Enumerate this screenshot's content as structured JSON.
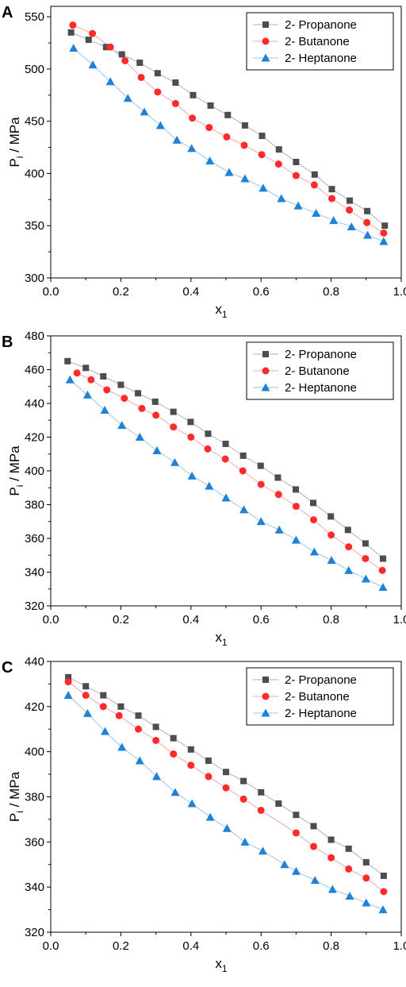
{
  "chart_data": [
    {
      "type": "scatter",
      "panel_label": "A",
      "xlabel": "x",
      "xlabel_sub": "1",
      "ylabel": "P",
      "ylabel_sub": "i",
      "ylabel_unit": " / MPa",
      "xlim": [
        0.0,
        1.0
      ],
      "ylim": [
        300,
        560
      ],
      "xticks": [
        0.0,
        0.2,
        0.4,
        0.6,
        0.8,
        1.0
      ],
      "xtick_labels": [
        "0.0",
        "0.2",
        "0.4",
        "0.6",
        "0.8",
        "1.0"
      ],
      "yticks": [
        300,
        350,
        400,
        450,
        500,
        550
      ],
      "ytick_labels": [
        "300",
        "350",
        "400",
        "450",
        "500",
        "550"
      ],
      "legend_position": "top-right",
      "series": [
        {
          "name": "2- Propanone",
          "color": "#4d4d4d",
          "line_color": "#b0b0b0",
          "marker": "square",
          "x": [
            0.058,
            0.108,
            0.158,
            0.203,
            0.254,
            0.305,
            0.356,
            0.406,
            0.456,
            0.505,
            0.554,
            0.603,
            0.651,
            0.7,
            0.753,
            0.802,
            0.853,
            0.903,
            0.953
          ],
          "y": [
            535,
            528,
            521,
            514,
            506,
            496,
            487,
            475,
            465,
            456,
            446,
            436,
            423,
            411,
            399,
            385,
            374,
            364,
            350
          ]
        },
        {
          "name": "2- Butanone",
          "color": "#ff2b2b",
          "line_color": "#f4a6a6",
          "marker": "circle",
          "x": [
            0.063,
            0.119,
            0.17,
            0.212,
            0.258,
            0.305,
            0.356,
            0.404,
            0.452,
            0.502,
            0.552,
            0.602,
            0.65,
            0.7,
            0.752,
            0.802,
            0.852,
            0.902,
            0.95
          ],
          "y": [
            542,
            534,
            521,
            508,
            492,
            478,
            467,
            453,
            444,
            435,
            427,
            418,
            409,
            398,
            389,
            376,
            365,
            353,
            343
          ]
        },
        {
          "name": "2- Heptanone",
          "color": "#1f82d8",
          "line_color": "#9cc6ea",
          "marker": "triangle",
          "x": [
            0.065,
            0.12,
            0.17,
            0.22,
            0.267,
            0.313,
            0.36,
            0.402,
            0.454,
            0.509,
            0.554,
            0.606,
            0.658,
            0.706,
            0.757,
            0.807,
            0.858,
            0.904,
            0.95
          ],
          "y": [
            520,
            504,
            488,
            472,
            459,
            446,
            432,
            424,
            412,
            401,
            395,
            386,
            376,
            369,
            362,
            355,
            349,
            341,
            335
          ]
        }
      ]
    },
    {
      "type": "scatter",
      "panel_label": "B",
      "xlabel": "x",
      "xlabel_sub": "1",
      "ylabel": "P",
      "ylabel_sub": "i",
      "ylabel_unit": " / MPa",
      "xlim": [
        0.0,
        1.0
      ],
      "ylim": [
        320,
        480
      ],
      "xticks": [
        0.0,
        0.2,
        0.4,
        0.6,
        0.8,
        1.0
      ],
      "xtick_labels": [
        "0.0",
        "0.2",
        "0.4",
        "0.6",
        "0.8",
        "1.0"
      ],
      "yticks": [
        320,
        340,
        360,
        380,
        400,
        420,
        440,
        460,
        480
      ],
      "ytick_labels": [
        "320",
        "340",
        "360",
        "380",
        "400",
        "420",
        "440",
        "460",
        "480"
      ],
      "legend_position": "top-right",
      "series": [
        {
          "name": "2- Propanone",
          "color": "#4d4d4d",
          "line_color": "#b0b0b0",
          "marker": "square",
          "x": [
            0.048,
            0.1,
            0.15,
            0.2,
            0.249,
            0.298,
            0.35,
            0.399,
            0.449,
            0.499,
            0.549,
            0.599,
            0.648,
            0.699,
            0.749,
            0.799,
            0.848,
            0.898,
            0.948
          ],
          "y": [
            465,
            461,
            456,
            451,
            446,
            441,
            435,
            429,
            422,
            416,
            409,
            403,
            396,
            389,
            381,
            373,
            365,
            357,
            348
          ]
        },
        {
          "name": "2- Butanone",
          "color": "#ff2b2b",
          "line_color": "#f4a6a6",
          "marker": "circle",
          "x": [
            0.075,
            0.115,
            0.16,
            0.21,
            0.26,
            0.3,
            0.35,
            0.4,
            0.448,
            0.498,
            0.548,
            0.6,
            0.65,
            0.7,
            0.75,
            0.8,
            0.85,
            0.898,
            0.946
          ],
          "y": [
            458,
            454,
            448,
            443,
            437,
            433,
            426,
            420,
            413,
            407,
            400,
            392,
            386,
            379,
            371,
            362,
            355,
            348,
            341
          ]
        },
        {
          "name": "2- Heptanone",
          "color": "#1f82d8",
          "line_color": "#9cc6ea",
          "marker": "triangle",
          "x": [
            0.055,
            0.105,
            0.154,
            0.203,
            0.254,
            0.303,
            0.354,
            0.403,
            0.452,
            0.5,
            0.551,
            0.6,
            0.652,
            0.7,
            0.752,
            0.801,
            0.85,
            0.899,
            0.948
          ],
          "y": [
            454,
            445,
            436,
            427,
            420,
            412,
            405,
            397,
            391,
            384,
            377,
            370,
            365,
            359,
            352,
            347,
            341,
            336,
            331
          ]
        }
      ]
    },
    {
      "type": "scatter",
      "panel_label": "C",
      "xlabel": "x",
      "xlabel_sub": "1",
      "ylabel": "P",
      "ylabel_sub": "i",
      "ylabel_unit": " / MPa",
      "xlim": [
        0.0,
        1.0
      ],
      "ylim": [
        320,
        440
      ],
      "xticks": [
        0.0,
        0.2,
        0.4,
        0.6,
        0.8,
        1.0
      ],
      "xtick_labels": [
        "0.0",
        "0.2",
        "0.4",
        "0.6",
        "0.8",
        "1.0"
      ],
      "yticks": [
        320,
        340,
        360,
        380,
        400,
        420,
        440
      ],
      "ytick_labels": [
        "320",
        "340",
        "360",
        "380",
        "400",
        "420",
        "440"
      ],
      "legend_position": "top-right",
      "series": [
        {
          "name": "2- Propanone",
          "color": "#4d4d4d",
          "line_color": "#b0b0b0",
          "marker": "square",
          "x": [
            0.05,
            0.1,
            0.15,
            0.2,
            0.25,
            0.3,
            0.35,
            0.4,
            0.45,
            0.5,
            0.55,
            0.6,
            0.65,
            0.7,
            0.75,
            0.8,
            0.85,
            0.9,
            0.95
          ],
          "y": [
            433,
            429,
            425,
            420,
            416,
            411,
            406,
            401,
            396,
            391,
            387,
            382,
            377,
            372,
            367,
            361,
            357,
            351,
            345
          ]
        },
        {
          "name": "2- Butanone",
          "color": "#ff2b2b",
          "line_color": "#f4a6a6",
          "marker": "circle",
          "x": [
            0.05,
            0.1,
            0.15,
            0.195,
            0.25,
            0.3,
            0.35,
            0.4,
            0.45,
            0.5,
            0.55,
            0.6,
            0.7,
            0.75,
            0.8,
            0.85,
            0.9,
            0.95
          ],
          "y": [
            431,
            425,
            420,
            416,
            410,
            405,
            399,
            394,
            389,
            384,
            379,
            374,
            364,
            358,
            353,
            348,
            344,
            338
          ]
        },
        {
          "name": "2- Heptanone",
          "color": "#1f82d8",
          "line_color": "#9cc6ea",
          "marker": "triangle",
          "x": [
            0.05,
            0.105,
            0.155,
            0.203,
            0.254,
            0.302,
            0.355,
            0.403,
            0.455,
            0.503,
            0.554,
            0.605,
            0.667,
            0.7,
            0.754,
            0.804,
            0.853,
            0.9,
            0.948
          ],
          "y": [
            425,
            417,
            409,
            402,
            396,
            389,
            382,
            377,
            371,
            366,
            360,
            356,
            350,
            347,
            343,
            339,
            336,
            333,
            330
          ]
        }
      ]
    }
  ]
}
